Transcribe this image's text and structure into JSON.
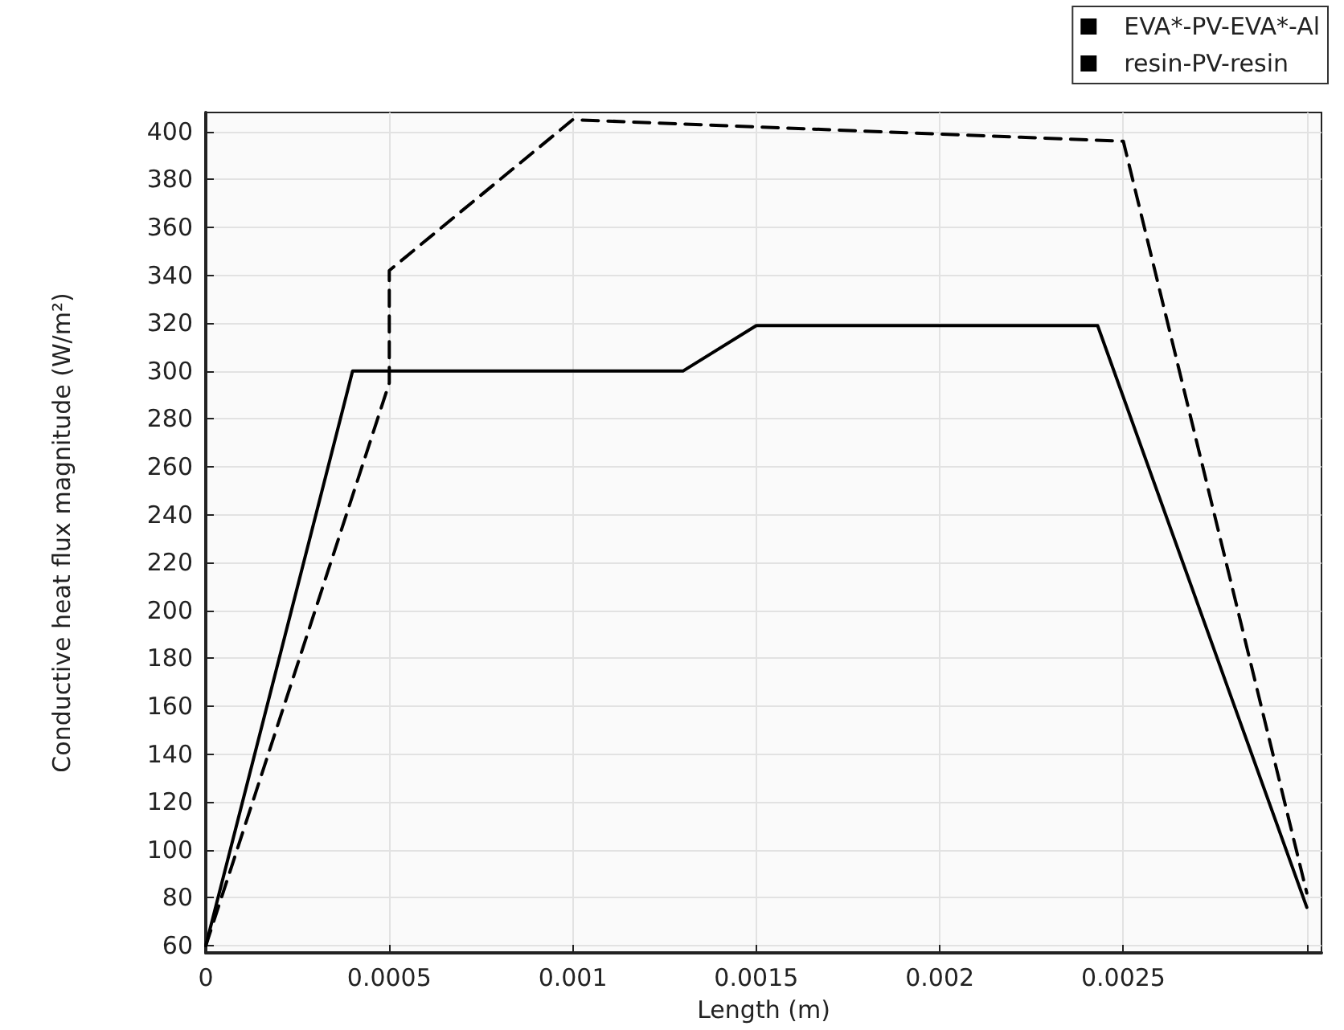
{
  "chart_data": {
    "type": "line",
    "xlabel": "Length (m)",
    "ylabel": "Conductive heat flux magnitude (W/m²)",
    "xlim": [
      0,
      0.00304
    ],
    "ylim": [
      57,
      408
    ],
    "xticks": [
      0,
      0.0005,
      0.001,
      0.0015,
      0.002,
      0.0025,
      {
        "value": 0.003,
        "label": null
      }
    ],
    "yticks": [
      60,
      80,
      100,
      120,
      140,
      160,
      180,
      200,
      220,
      240,
      260,
      280,
      300,
      320,
      340,
      360,
      380,
      400
    ],
    "grid": true,
    "legend": "top right",
    "marker": "none",
    "series": [
      {
        "name": "EVA*-PV-EVA*-Al",
        "color": "#000000",
        "line_style": "dashed",
        "x": [
          0,
          0.0005,
          0.0005,
          0.001,
          0.0025,
          0.003
        ],
        "values": [
          60,
          295,
          342,
          405,
          396,
          82
        ]
      },
      {
        "name": "resin-PV-resin",
        "color": "#000000",
        "line_style": "solid",
        "x": [
          0,
          0.0004,
          0.0013,
          0.0015,
          0.00243,
          0.003
        ],
        "values": [
          60,
          300,
          300,
          319,
          319,
          76
        ]
      }
    ]
  }
}
